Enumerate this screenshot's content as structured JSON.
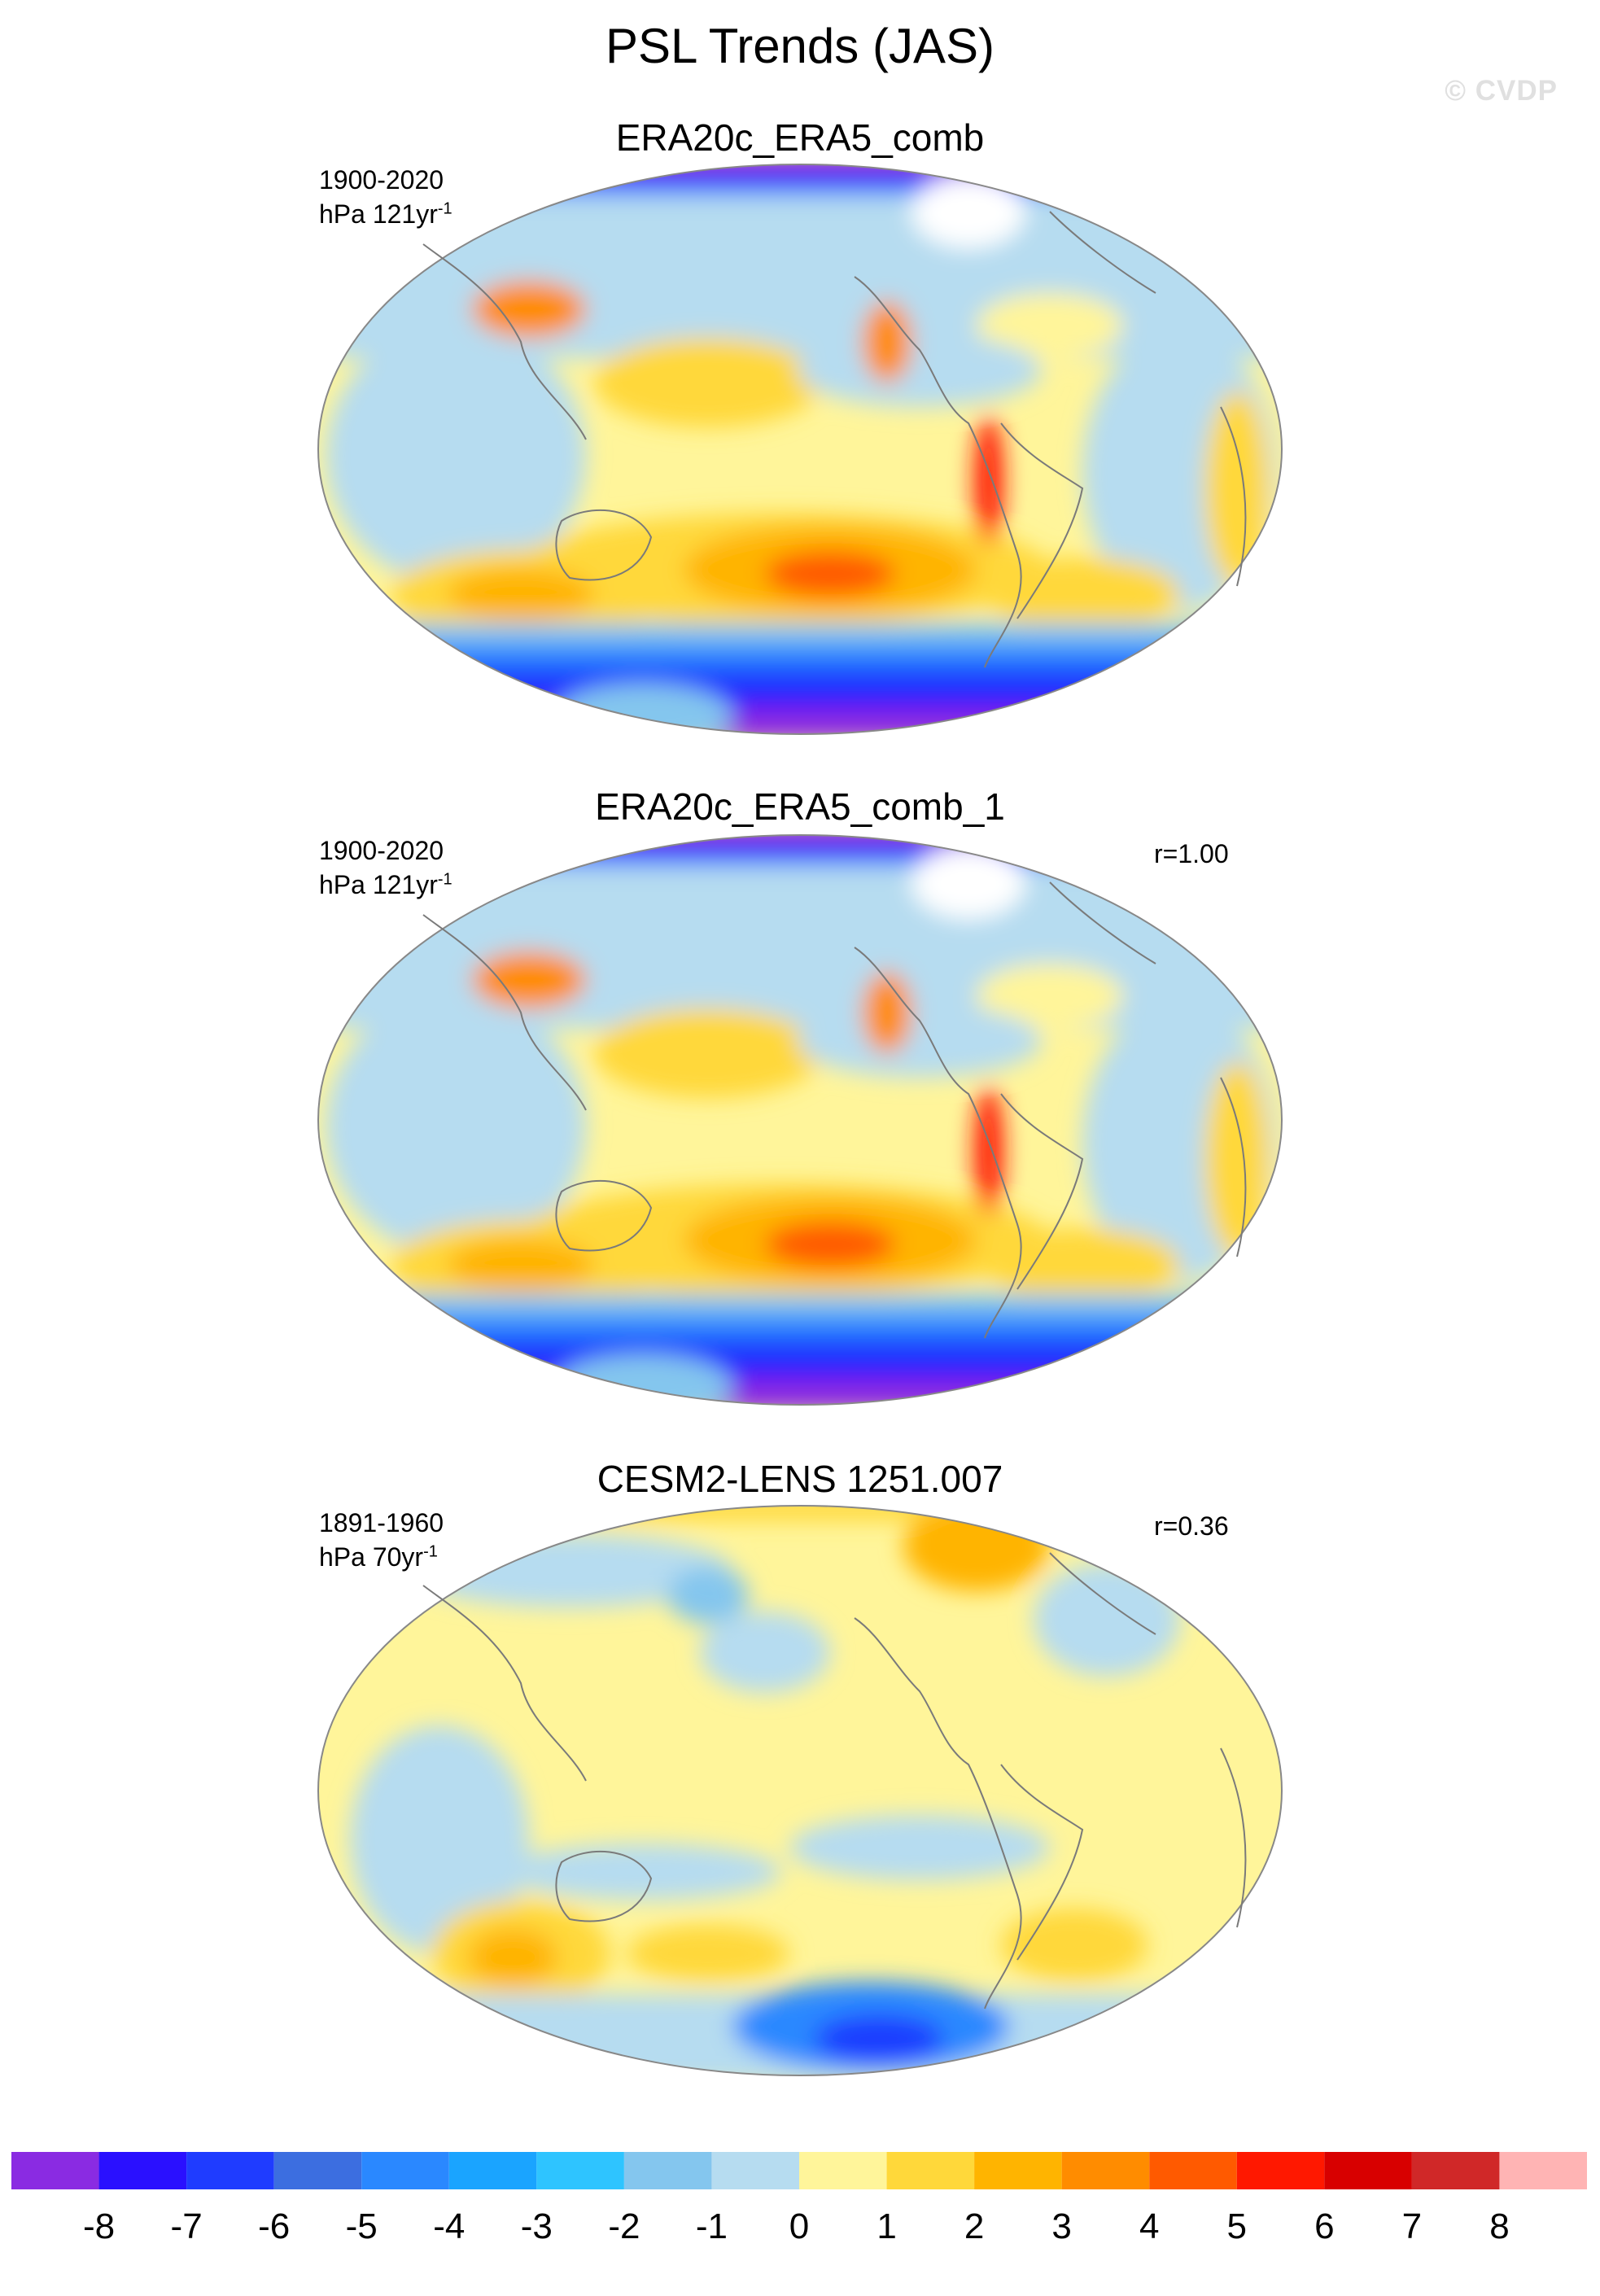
{
  "title": "PSL Trends (JAS)",
  "watermark": "© CVDP",
  "panels": [
    {
      "title": "ERA20c_ERA5_comb",
      "period": "1900-2020",
      "units_prefix": "hPa 121yr",
      "units_exp": "-1",
      "corr": ""
    },
    {
      "title": "ERA20c_ERA5_comb_1",
      "period": "1900-2020",
      "units_prefix": "hPa 121yr",
      "units_exp": "-1",
      "corr": "r=1.00"
    },
    {
      "title": "CESM2-LENS 1251.007",
      "period": "1891-1960",
      "units_prefix": "hPa 70yr",
      "units_exp": "-1",
      "corr": "r=0.36"
    }
  ],
  "colorbar": {
    "colors": [
      "#8a2be2",
      "#2a10ff",
      "#1f3cff",
      "#3c6ee0",
      "#2a88ff",
      "#1aa4ff",
      "#2ec4ff",
      "#84c6ee",
      "#b6dcf0",
      "#fff59a",
      "#ffd83a",
      "#ffb400",
      "#ff8c00",
      "#ff5a00",
      "#ff1800",
      "#d80000",
      "#d02828",
      "#ffb4b4"
    ],
    "labels": [
      "-8",
      "-7",
      "-6",
      "-5",
      "-4",
      "-3",
      "-2",
      "-1",
      "0",
      "1",
      "2",
      "3",
      "4",
      "5",
      "6",
      "7",
      "8"
    ]
  },
  "colors": {
    "ocean_base": "#fff59a",
    "coast": "#7a7a7a"
  }
}
